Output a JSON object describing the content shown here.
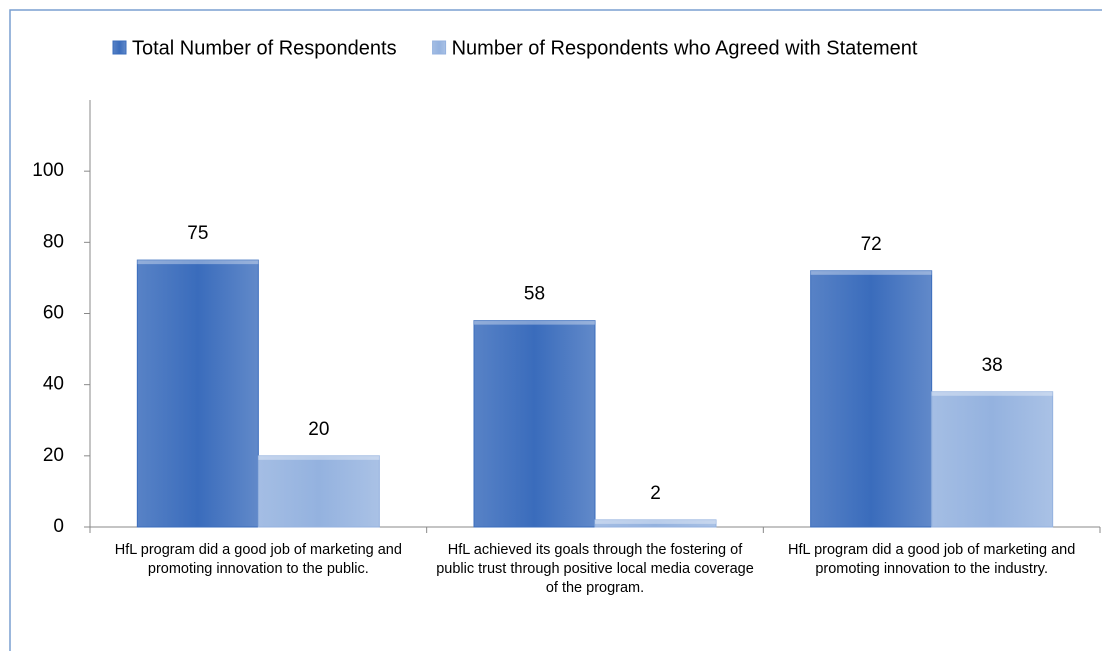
{
  "chart_data": {
    "type": "bar",
    "categories": [
      "HfL program did a good job of marketing and promoting innovation to the public.",
      "HfL achieved its goals through the fostering of public trust through positive local media coverage of the program.",
      "HfL program did a good job of marketing and promoting innovation to the industry."
    ],
    "series": [
      {
        "name": "Total Number of Respondents",
        "color": "#3a6cbc",
        "values": [
          75,
          58,
          72
        ]
      },
      {
        "name": "Number of Respondents who Agreed with Statement",
        "color": "#94b2df",
        "values": [
          20,
          2,
          38
        ]
      }
    ],
    "ylim": [
      0,
      120
    ],
    "yticks": [
      0,
      20,
      40,
      60,
      80,
      100
    ],
    "grid": false,
    "legend": "top"
  }
}
